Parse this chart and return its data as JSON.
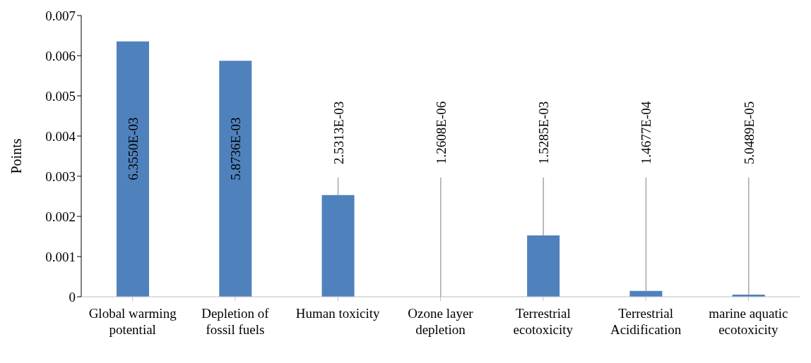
{
  "chart_data": {
    "type": "bar",
    "ylabel": "Points",
    "categories": [
      "Global warming potential",
      "Depletion of fossil fuels",
      "Human toxicity",
      "Ozone layer depletion",
      "Terrestrial ecotoxicity",
      "Terrestrial Acidification",
      "marine aquatic ecotoxicity"
    ],
    "values": [
      0.006355,
      0.0058736,
      0.0025313,
      1.2608e-06,
      0.0015285,
      0.00014677,
      5.0489e-05
    ],
    "value_labels": [
      "6.3550E-03",
      "5.8736E-03",
      "2.5313E-03",
      "1.2608E-06",
      "1.5285E-03",
      "1.4677E-04",
      "5.0489E-05"
    ],
    "color": "#4f81bd",
    "ylim": [
      0,
      0.007
    ],
    "yticks": [
      0,
      0.001,
      0.002,
      0.003,
      0.004,
      0.005,
      0.006,
      0.007
    ]
  }
}
